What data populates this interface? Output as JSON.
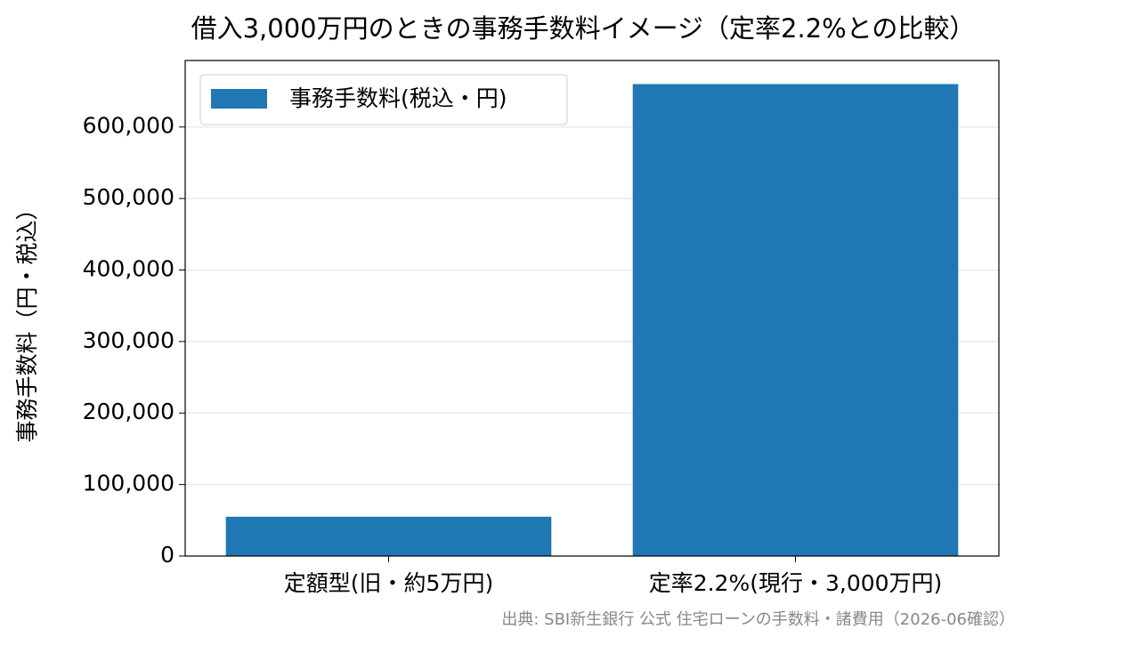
{
  "chart_data": {
    "type": "bar",
    "title": "借入3,000万円のときの事務手数料イメージ（定率2.2%との比較）",
    "y_label": "事務手数料（円・税込）",
    "categories": [
      "定額型(旧・約5万円)",
      "定率2.2%(現行・3,000万円)"
    ],
    "series": [
      {
        "name": "事務手数料(税込・円)",
        "color": "#1f77b4",
        "values": [
          55000,
          660000
        ]
      }
    ],
    "ylim": [
      0,
      693000
    ],
    "yticks": [
      0,
      {
        "value": 100000,
        "label": "100,000"
      },
      {
        "value": 200000,
        "label": "200,000"
      },
      {
        "value": 300000,
        "label": "300,000"
      },
      {
        "value": 400000,
        "label": "400,000"
      },
      {
        "value": 500000,
        "label": "500,000"
      },
      {
        "value": 600000,
        "label": "600,000"
      }
    ],
    "grid": true,
    "legend": "upper left",
    "source": "出典: SBI新生銀行 公式 住宅ローンの手数料・諸費用（2026-06確認）"
  }
}
